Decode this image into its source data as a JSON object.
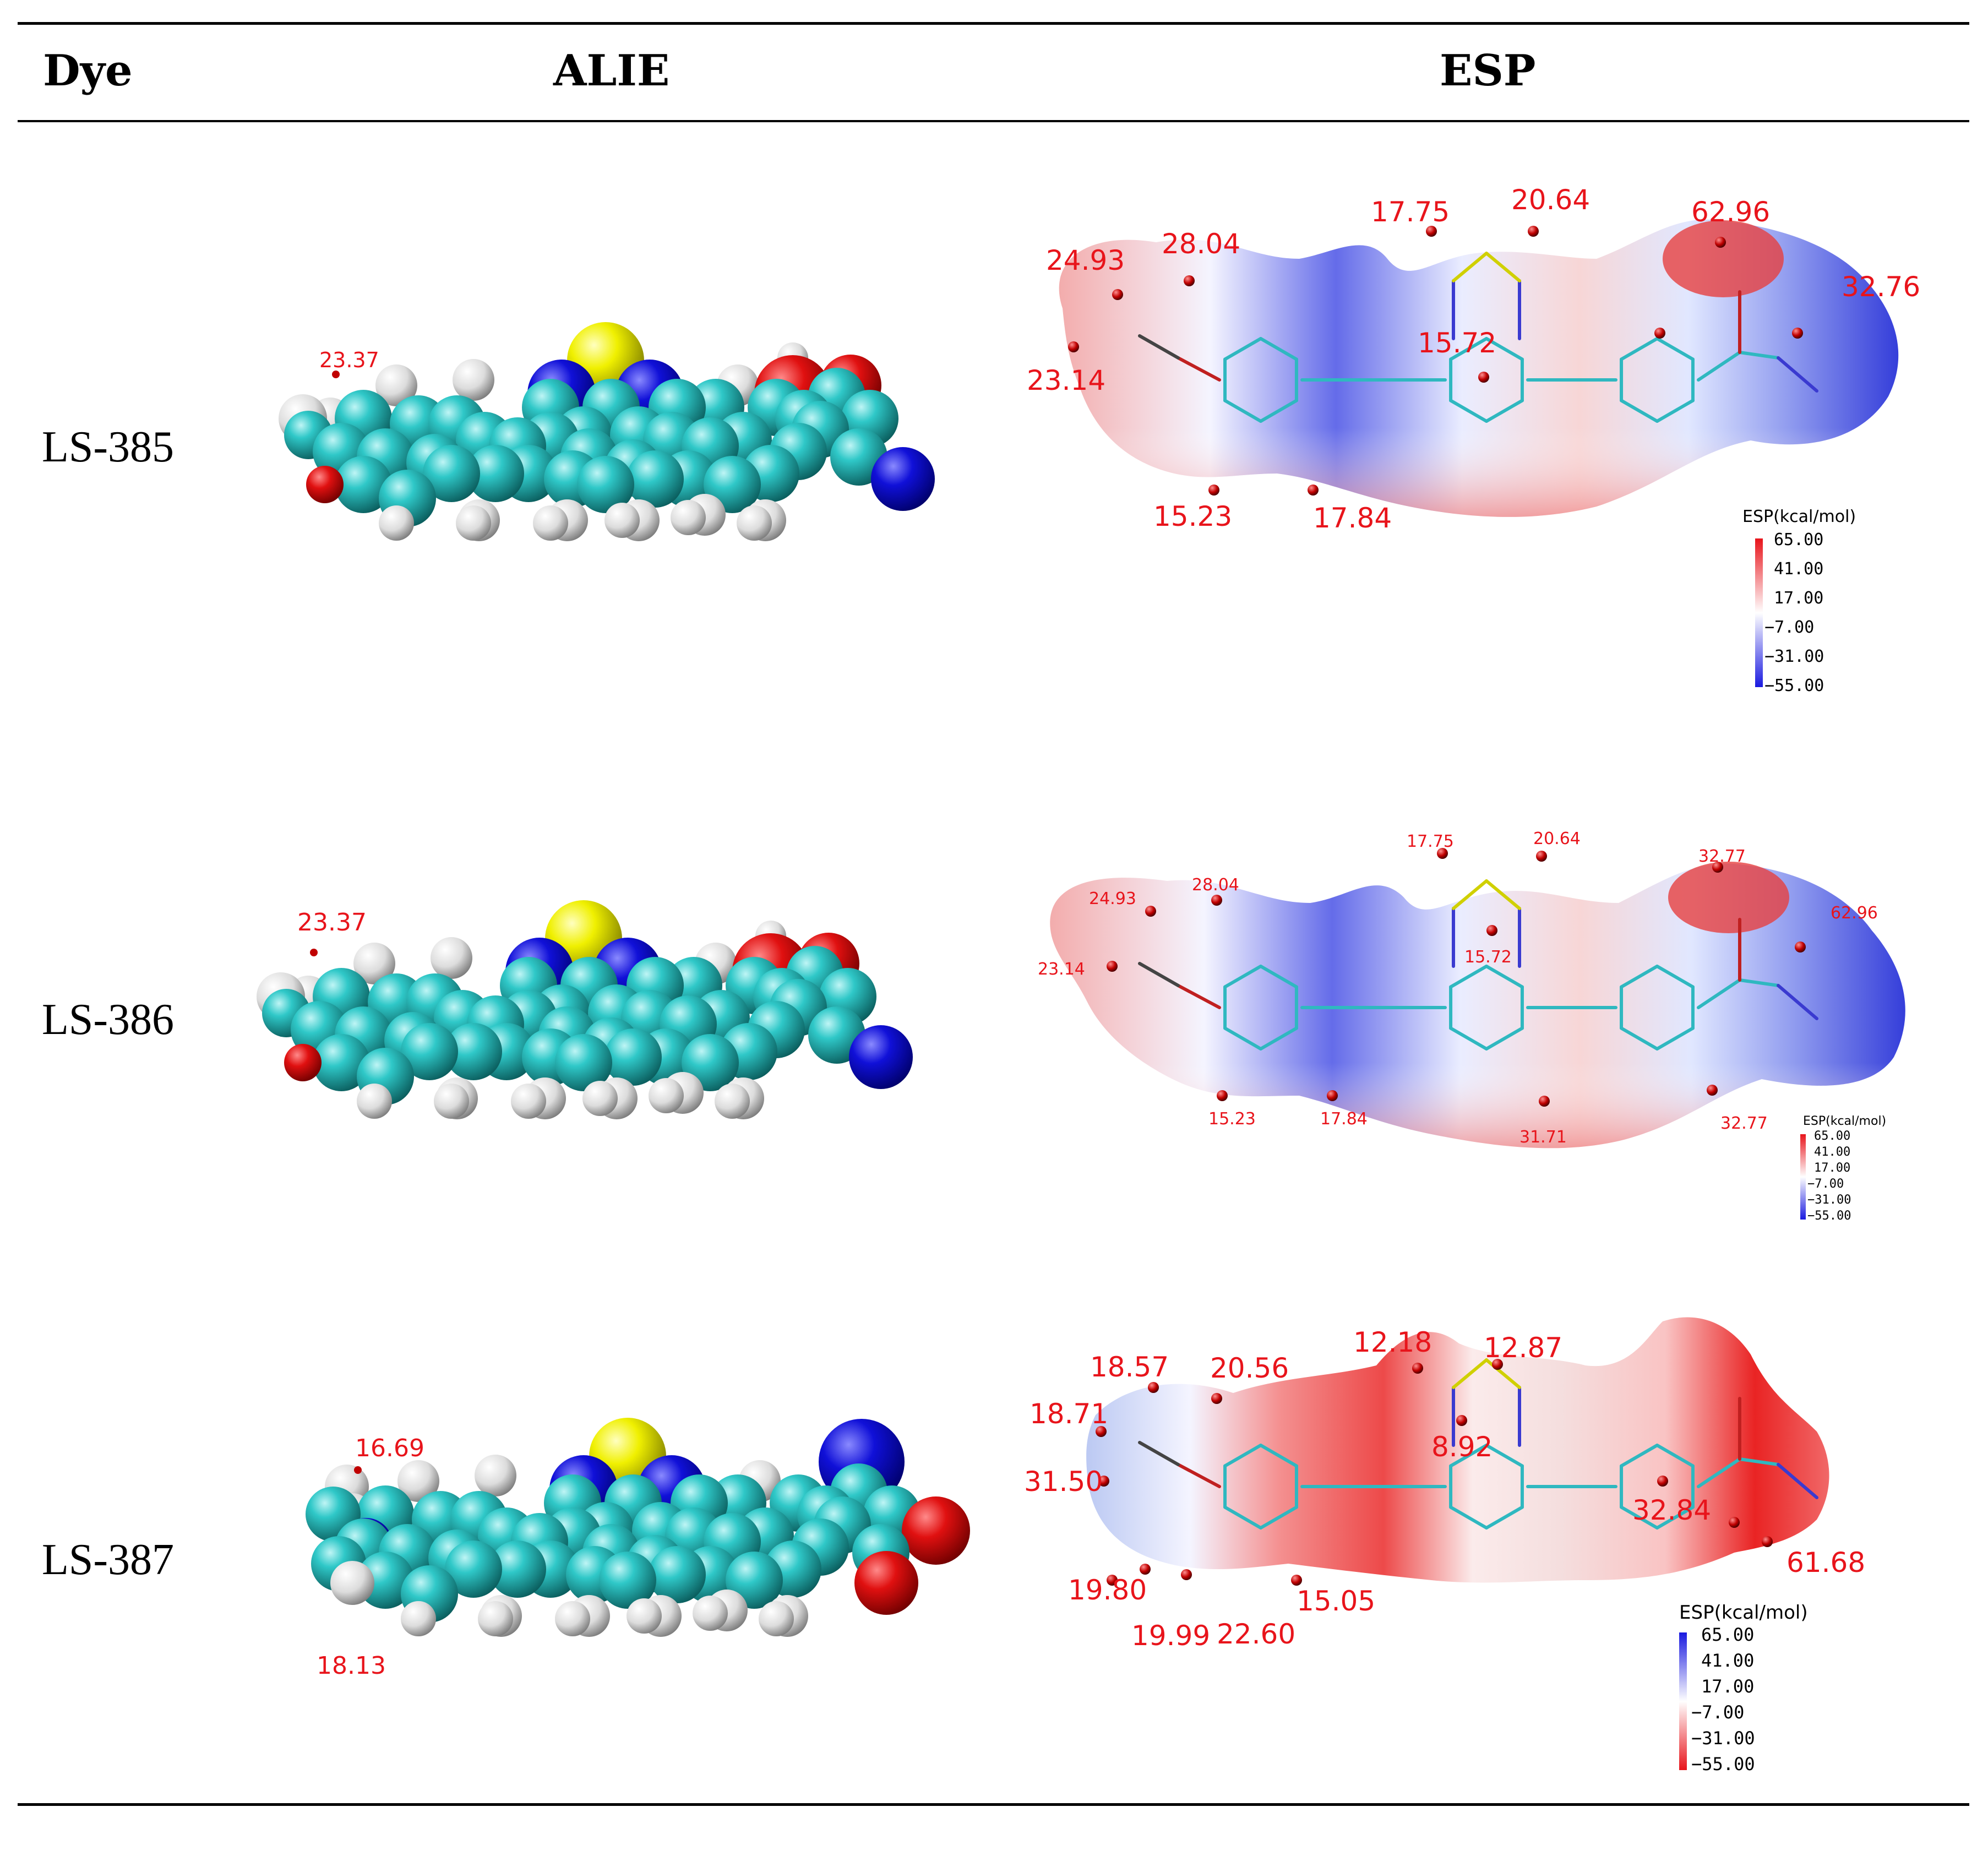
{
  "table": {
    "headers": {
      "dye": "Dye",
      "alie": "ALIE",
      "esp": "ESP"
    },
    "rows": [
      {
        "dye": "LS-385",
        "alie_labels": [
          "23.37"
        ],
        "esp_labels": [
          "24.93",
          "28.04",
          "17.75",
          "20.64",
          "62.96",
          "32.76",
          "23.14",
          "15.72",
          "15.23",
          "17.84"
        ],
        "colorbar": {
          "title": "ESP(kcal/mol)",
          "ticks": [
            "65.00",
            "41.00",
            "17.00",
            "−7.00",
            "−31.00",
            "−55.00"
          ],
          "top_color": "#e8141b",
          "bottom_color": "#1a1ae0"
        }
      },
      {
        "dye": "LS-386",
        "alie_labels": [
          "23.37"
        ],
        "esp_labels": [
          "24.93",
          "28.04",
          "17.75",
          "20.64",
          "32.77",
          "62.96",
          "23.14",
          "15.72",
          "15.23",
          "17.84",
          "31.71",
          "32.77"
        ],
        "colorbar": {
          "title": "ESP(kcal/mol)",
          "ticks": [
            "65.00",
            "41.00",
            "17.00",
            "−7.00",
            "−31.00",
            "−55.00"
          ],
          "top_color": "#e8141b",
          "bottom_color": "#1a1ae0"
        }
      },
      {
        "dye": "LS-387",
        "alie_labels": [
          "16.69",
          "18.13"
        ],
        "esp_labels": [
          "18.57",
          "20.56",
          "12.18",
          "12.87",
          "18.71",
          "8.92",
          "31.50",
          "32.84",
          "61.68",
          "19.80",
          "15.05",
          "19.99",
          "22.60"
        ],
        "colorbar": {
          "title": "ESP(kcal/mol)",
          "ticks": [
            "65.00",
            "41.00",
            "17.00",
            "−7.00",
            "−31.00",
            "−55.00"
          ],
          "top_color": "#1a1ae0",
          "bottom_color": "#e8141b"
        }
      }
    ]
  },
  "colors": {
    "carbon": "#21b8b8",
    "hydrogen": "#e6e6e6",
    "oxygen": "#e01010",
    "nitrogen": "#1010d8",
    "sulfur": "#f0f000",
    "label_red": "#e8141b"
  }
}
